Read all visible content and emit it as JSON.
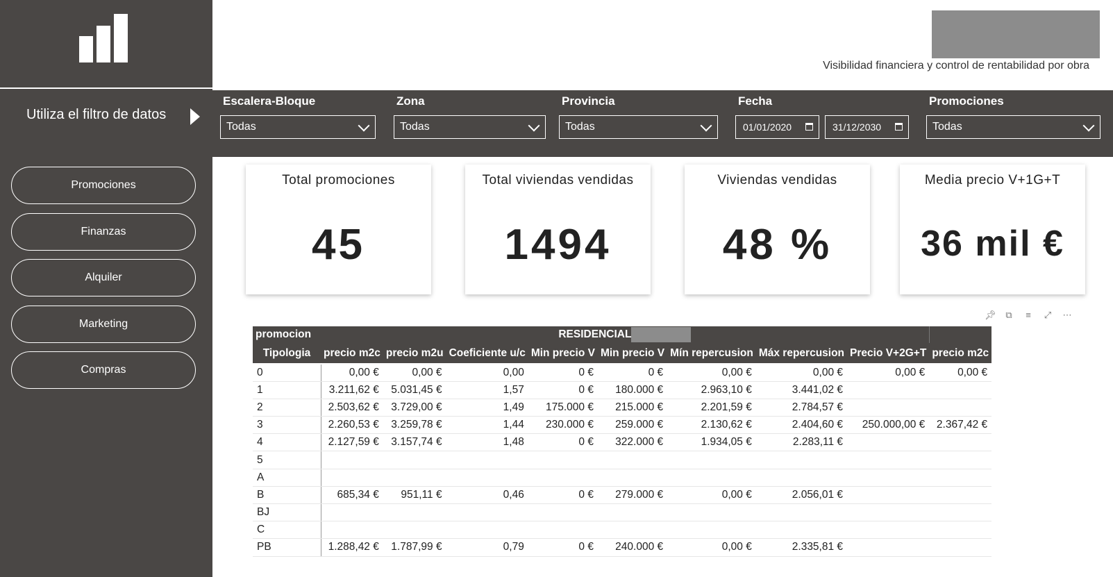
{
  "sidebar": {
    "filter_hint": "Utiliza el filtro de datos",
    "nav": [
      "Promociones",
      "Finanzas",
      "Alquiler",
      "Marketing",
      "Compras"
    ]
  },
  "header": {
    "tagline": "Visibilidad financiera y control de rentabilidad por obra"
  },
  "filters": {
    "escalera": {
      "label": "Escalera-Bloque",
      "value": "Todas"
    },
    "zona": {
      "label": "Zona",
      "value": "Todas"
    },
    "provincia": {
      "label": "Provincia",
      "value": "Todas"
    },
    "fecha": {
      "label": "Fecha",
      "from": "01/01/2020",
      "to": "31/12/2030"
    },
    "promociones": {
      "label": "Promociones",
      "value": "Todas"
    }
  },
  "kpis": [
    {
      "title": "Total promociones",
      "value": "45"
    },
    {
      "title": "Total viviendas vendidas",
      "value": "1494"
    },
    {
      "title": "Viviendas vendidas",
      "value": "48 %"
    },
    {
      "title": "Media precio V+1G+T",
      "value": "36 mil €"
    }
  ],
  "table": {
    "group_header": {
      "row_label": "promocion",
      "group": "RESIDENCIAL"
    },
    "columns": [
      "Tipologia",
      "precio m2c",
      "precio m2u",
      "Coeficiente u/c",
      "Min precio V",
      "Min precio V",
      "Mín repercusion",
      "Máx repercusion",
      "Precio V+2G+T",
      "precio m2c"
    ],
    "rows": [
      [
        "0",
        "0,00 €",
        "0,00 €",
        "0,00",
        "0 €",
        "0 €",
        "0,00 €",
        "0,00 €",
        "0,00 €",
        "0,00 €"
      ],
      [
        "1",
        "3.211,62 €",
        "5.031,45 €",
        "1,57",
        "0 €",
        "180.000 €",
        "2.963,10 €",
        "3.441,02 €",
        "",
        ""
      ],
      [
        "2",
        "2.503,62 €",
        "3.729,00 €",
        "1,49",
        "175.000 €",
        "215.000 €",
        "2.201,59 €",
        "2.784,57 €",
        "",
        ""
      ],
      [
        "3",
        "2.260,53 €",
        "3.259,78 €",
        "1,44",
        "230.000 €",
        "259.000 €",
        "2.130,62 €",
        "2.404,60 €",
        "250.000,00 €",
        "2.367,42 €"
      ],
      [
        "4",
        "2.127,59 €",
        "3.157,74 €",
        "1,48",
        "0 €",
        "322.000 €",
        "1.934,05 €",
        "2.283,11 €",
        "",
        ""
      ],
      [
        "5",
        "",
        "",
        "",
        "",
        "",
        "",
        "",
        "",
        ""
      ],
      [
        "A",
        "",
        "",
        "",
        "",
        "",
        "",
        "",
        "",
        ""
      ],
      [
        "B",
        "685,34 €",
        "951,11 €",
        "0,46",
        "0 €",
        "279.000 €",
        "0,00 €",
        "2.056,01 €",
        "",
        ""
      ],
      [
        "BJ",
        "",
        "",
        "",
        "",
        "",
        "",
        "",
        "",
        ""
      ],
      [
        "C",
        "",
        "",
        "",
        "",
        "",
        "",
        "",
        "",
        ""
      ],
      [
        "PB",
        "1.288,42 €",
        "1.787,99 €",
        "0,79",
        "0 €",
        "240.000 €",
        "0,00 €",
        "2.335,81 €",
        "",
        ""
      ]
    ]
  },
  "colors": {
    "dark": "#4a4745",
    "white": "#ffffff",
    "mask": "#8c8c8c"
  }
}
